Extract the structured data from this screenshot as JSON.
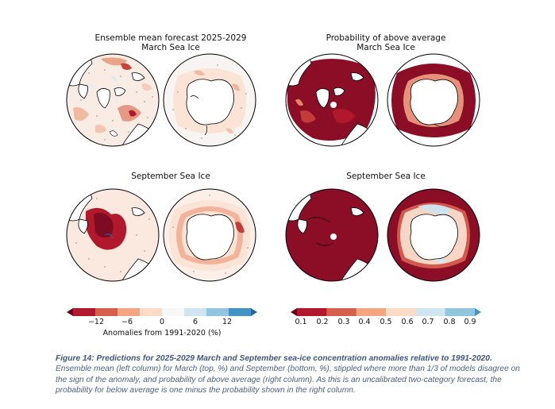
{
  "panels": {
    "left_title_top_line1": "Ensemble mean forecast 2025-2029",
    "left_title_top_line2": "March Sea Ice",
    "right_title_top_line1": "Probability of above average",
    "right_title_top_line2": "March Sea Ice",
    "left_title_bottom": "September Sea Ice",
    "right_title_bottom": "September Sea Ice"
  },
  "colorbar_left": {
    "label": "Anomalies from 1991-2020 (%)",
    "ticks": [
      "−12",
      "−6",
      "0",
      "6",
      "12"
    ],
    "colors": [
      "#67001f",
      "#b2182b",
      "#d6604d",
      "#f4a582",
      "#fddbc7",
      "#f7f7f7",
      "#d1e5f0",
      "#92c5de",
      "#4393c3",
      "#2166ac"
    ]
  },
  "colorbar_right": {
    "ticks": [
      "0.1",
      "0.2",
      "0.3",
      "0.4",
      "0.5",
      "0.6",
      "0.7",
      "0.8",
      "0.9"
    ],
    "colors": [
      "#67001f",
      "#b2182b",
      "#d6604d",
      "#f4a582",
      "#fddbc7",
      "#d1e5f0",
      "#92c5de",
      "#4393c3"
    ]
  },
  "caption": {
    "bold": "Figure 14: Predictions for 2025-2029 March and September sea-ice concentration anomalies relative to 1991-2020.",
    "rest": "Ensemble mean (left column) for March (top, %) and September (bottom, %), stippled where more than 1/3 of models disagree on the sign of the anomaly, and probability of above average (right column). As this is an uncalibrated two-category forecast, the probability for below average is one minus the probability shown in the right column."
  },
  "chart_data": [
    {
      "type": "heatmap",
      "title": "Ensemble mean forecast 2025-2029 March Sea Ice",
      "colorbar_label": "Anomalies from 1991-2020 (%)",
      "vmin": -15,
      "vmax": 15
    },
    {
      "type": "heatmap",
      "title": "Probability of above average March Sea Ice",
      "vmin": 0.1,
      "vmax": 0.9
    },
    {
      "type": "heatmap",
      "title": "September Sea Ice",
      "colorbar_label": "Anomalies from 1991-2020 (%)",
      "vmin": -15,
      "vmax": 15
    },
    {
      "type": "heatmap",
      "title": "September Sea Ice",
      "vmin": 0.1,
      "vmax": 0.9
    }
  ]
}
